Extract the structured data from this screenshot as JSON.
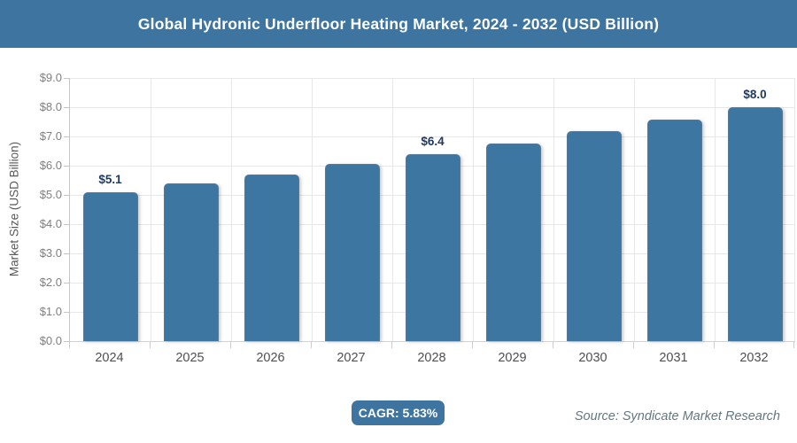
{
  "banner": {
    "title": "Global Hydronic Underfloor Heating Market, 2024 - 2032 (USD Billion)"
  },
  "chart_data": {
    "type": "bar",
    "title": "Global Hydronic Underfloor Heating Market, 2024 - 2032 (USD Billion)",
    "categories": [
      "2024",
      "2025",
      "2026",
      "2027",
      "2028",
      "2029",
      "2030",
      "2031",
      "2032"
    ],
    "values": [
      5.1,
      5.4,
      5.71,
      6.05,
      6.4,
      6.77,
      7.17,
      7.58,
      8.0
    ],
    "data_labels": [
      "$5.1",
      null,
      null,
      null,
      "$6.4",
      null,
      null,
      null,
      "$8.0"
    ],
    "xlabel": "",
    "ylabel": "Market Size (USD Billion)",
    "ylim": [
      0,
      9
    ],
    "ytick_step": 1,
    "grid": true,
    "legend_position": "none"
  },
  "y_axis": {
    "title": "Market Size (USD Billion)",
    "tick_labels": [
      "$0.0",
      "$1.0",
      "$2.0",
      "$3.0",
      "$4.0",
      "$5.0",
      "$6.0",
      "$7.0",
      "$8.0",
      "$9.0"
    ]
  },
  "x_axis": {
    "tick_labels": [
      "2024",
      "2025",
      "2026",
      "2027",
      "2028",
      "2029",
      "2030",
      "2031",
      "2032"
    ]
  },
  "footer": {
    "cagr_badge": "CAGR: 5.83%",
    "source": "Source: Syndicate Market Research"
  },
  "colors": {
    "banner": "#3e75a0",
    "bar": "#3e76a2",
    "badge": "#3e75a0",
    "data_label": "#1f3a60",
    "grid": "#e7e7e7",
    "axis": "#c6c6c6",
    "y_tick_text": "#7f7f7f",
    "x_tick_text": "#4f4f4f",
    "source_text": "#64777f",
    "background": "#ffffff"
  }
}
